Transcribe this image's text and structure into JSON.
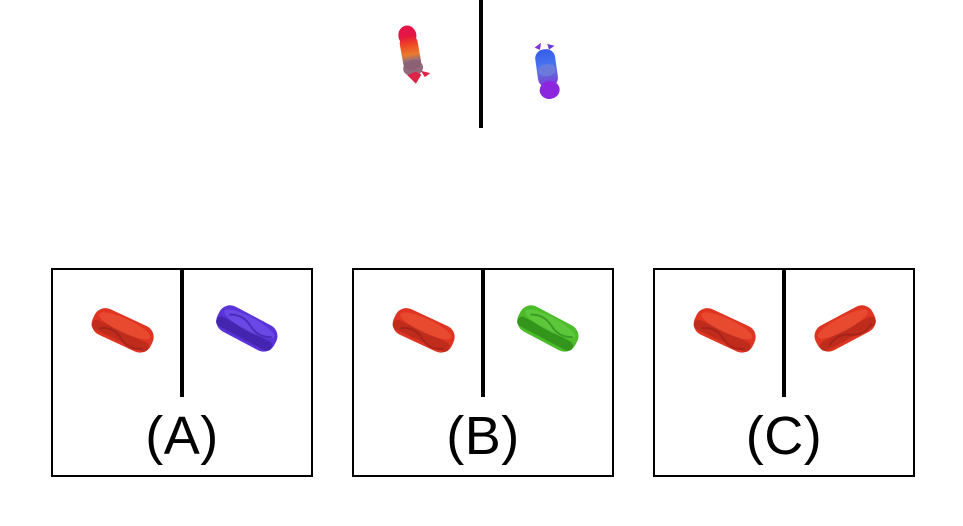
{
  "prompt": {
    "left_object_icon": "multicolor-sandwich-side-view-icon",
    "right_object_icon": "blue-purple-sandwich-side-view-icon"
  },
  "options": [
    {
      "label": "(A)",
      "left_icon": "red-sandwich-icon",
      "right_icon": "blue-sandwich-icon",
      "left_color": "#E2311F",
      "right_color": "#5A33D6"
    },
    {
      "label": "(B)",
      "left_icon": "red-sandwich-icon",
      "right_icon": "green-sandwich-icon",
      "left_color": "#E2311F",
      "right_color": "#4DBB2A"
    },
    {
      "label": "(C)",
      "left_icon": "red-sandwich-icon",
      "right_icon": "red-sandwich-icon",
      "left_color": "#E2311F",
      "right_color": "#E2311F"
    }
  ]
}
